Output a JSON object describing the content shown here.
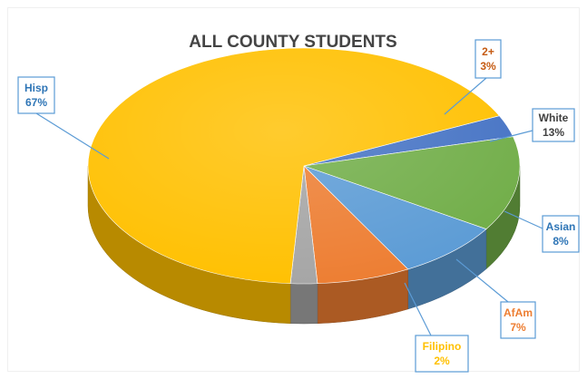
{
  "chart_data": {
    "type": "pie",
    "title": "ALL COUNTY STUDENTS",
    "slices": [
      {
        "label": "2+",
        "value": 3,
        "display": "3%",
        "color": "#4472c4"
      },
      {
        "label": "White",
        "value": 13,
        "display": "13%",
        "color": "#70ad47"
      },
      {
        "label": "Asian",
        "value": 8,
        "display": "8%",
        "color": "#5b9bd5"
      },
      {
        "label": "AfAm",
        "value": 7,
        "display": "7%",
        "color": "#ed7d31"
      },
      {
        "label": "Filipino",
        "value": 2,
        "display": "2%",
        "color": "#a5a5a5"
      },
      {
        "label": "Hisp",
        "value": 67,
        "display": "67%",
        "color": "#ffc000"
      }
    ],
    "label_colors": {
      "2+": "#c55a11",
      "White": "#404040",
      "Asian": "#2e75b6",
      "AfAm": "#ed7d31",
      "Filipino": "#ffc000",
      "Hisp": "#2e75b6"
    }
  }
}
